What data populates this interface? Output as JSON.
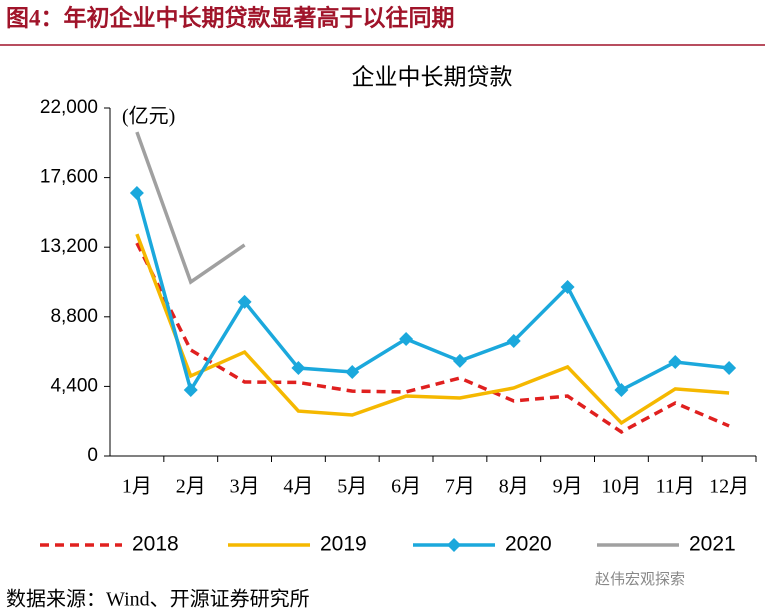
{
  "header": {
    "title": "图4：年初企业中长期贷款显著高于以往同期"
  },
  "chart_data": {
    "type": "line",
    "title": "企业中长期贷款",
    "unit": "(亿元)",
    "categories": [
      "1月",
      "2月",
      "3月",
      "4月",
      "5月",
      "6月",
      "7月",
      "8月",
      "9月",
      "10月",
      "11月",
      "12月"
    ],
    "series": [
      {
        "name": "2018",
        "color": "#e0201f",
        "dashed": true,
        "values": [
          13460,
          6700,
          4680,
          4650,
          4100,
          4050,
          4930,
          3480,
          3790,
          1520,
          3350,
          1900
        ]
      },
      {
        "name": "2019",
        "color": "#f5b800",
        "values": [
          14030,
          5060,
          6570,
          2840,
          2590,
          3790,
          3670,
          4300,
          5630,
          2090,
          4240,
          3980
        ]
      },
      {
        "name": "2020",
        "color": "#1ba8dc",
        "marker": "diamond",
        "values": [
          16630,
          4170,
          9740,
          5560,
          5310,
          7400,
          6010,
          7270,
          10680,
          4170,
          5940,
          5560
        ]
      },
      {
        "name": "2021",
        "color": "#a0a0a0",
        "values": [
          20480,
          11000,
          13340,
          null,
          null,
          null,
          null,
          null,
          null,
          null,
          null,
          null
        ]
      }
    ],
    "ylim": [
      0,
      22000
    ],
    "yticks": [
      0,
      {
        "value": 4400,
        "label": "4,400"
      },
      {
        "value": 8800,
        "label": "8,800"
      },
      {
        "value": 13200,
        "label": "13,200"
      },
      {
        "value": 17600,
        "label": "17,600"
      },
      {
        "value": 22000,
        "label": "22,000"
      }
    ],
    "legend": "bottom"
  },
  "footer": {
    "source": "数据来源：Wind、开源证券研究所",
    "watermark": "赵伟宏观探索"
  }
}
